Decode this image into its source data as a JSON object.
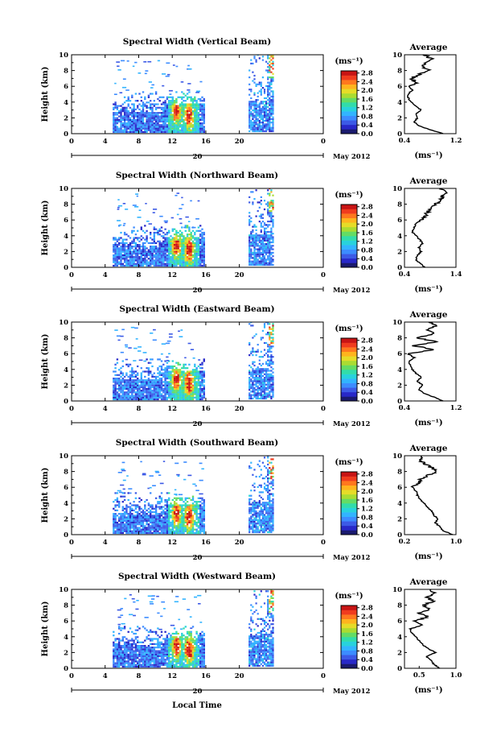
{
  "figure": {
    "xlabel": "Local Time",
    "colorbar_unit": "(ms⁻¹)",
    "avg_title": "Average",
    "avg_xlabel": "(ms⁻¹)",
    "ylabel": "Height (km)",
    "day_label": "20",
    "month_label": "May 2012",
    "x_ticks": [
      "0",
      "4",
      "8",
      "12",
      "16",
      "20",
      "0"
    ],
    "y_ticks": [
      "0",
      "2",
      "4",
      "6",
      "8",
      "10"
    ],
    "colorbar_ticks": [
      "0.0",
      "0.4",
      "0.8",
      "1.2",
      "1.6",
      "2.0",
      "2.4",
      "2.8"
    ]
  },
  "colors": {
    "colormap": [
      "#1a1a6e",
      "#2828c8",
      "#3c5ae6",
      "#3c8cff",
      "#32b4ff",
      "#28d2dc",
      "#32dcaa",
      "#64dc64",
      "#aadc32",
      "#e6dc28",
      "#ffb41e",
      "#ff781e",
      "#f03c1e",
      "#c81414"
    ]
  },
  "chart_data": [
    {
      "type": "heatmap",
      "title": "Spectral Width (Vertical Beam)",
      "xlabel": "Local Time",
      "ylabel": "Height (km)",
      "xlim": [
        0,
        24
      ],
      "ylim": [
        0,
        10
      ],
      "colorbar_range": [
        0.0,
        2.8
      ],
      "avg_profile": {
        "xlim": [
          0.4,
          1.2
        ],
        "x_ticks": [
          "0.4",
          "1.2"
        ],
        "height": [
          0,
          0.5,
          1,
          1.5,
          2,
          2.5,
          3,
          3.5,
          4,
          4.5,
          5,
          5.5,
          6,
          6.5,
          7,
          7.5,
          8,
          8.5,
          9,
          9.5,
          10
        ],
        "width": [
          1.0,
          0.8,
          0.62,
          0.55,
          0.6,
          0.57,
          0.66,
          0.58,
          0.5,
          0.46,
          0.45,
          0.52,
          0.48,
          0.6,
          0.5,
          0.62,
          0.78,
          0.68,
          0.72,
          0.82,
          0.7
        ]
      }
    },
    {
      "type": "heatmap",
      "title": "Spectral Width (Northward Beam)",
      "xlabel": "Local Time",
      "ylabel": "Height (km)",
      "xlim": [
        0,
        24
      ],
      "ylim": [
        0,
        10
      ],
      "colorbar_range": [
        0.0,
        2.8
      ],
      "avg_profile": {
        "xlim": [
          0.4,
          1.4
        ],
        "x_ticks": [
          "0.4",
          "1.4"
        ],
        "height": [
          0,
          0.5,
          1,
          1.5,
          2,
          2.5,
          3,
          3.5,
          4,
          4.5,
          5,
          5.5,
          6,
          6.5,
          7,
          7.5,
          8,
          8.5,
          9,
          9.5,
          10
        ],
        "width": [
          0.8,
          0.7,
          0.62,
          0.65,
          0.72,
          0.68,
          0.75,
          0.7,
          0.62,
          0.55,
          0.58,
          0.62,
          0.72,
          0.8,
          0.85,
          0.9,
          1.0,
          1.1,
          1.15,
          1.2,
          1.1
        ]
      }
    },
    {
      "type": "heatmap",
      "title": "Spectral Width (Eastward Beam)",
      "xlabel": "Local Time",
      "ylabel": "Height (km)",
      "xlim": [
        0,
        24
      ],
      "ylim": [
        0,
        10
      ],
      "colorbar_range": [
        0.0,
        2.8
      ],
      "avg_profile": {
        "xlim": [
          0.4,
          1.2
        ],
        "x_ticks": [
          "0.4",
          "1.2"
        ],
        "height": [
          0,
          0.5,
          1,
          1.5,
          2,
          2.5,
          3,
          3.5,
          4,
          4.5,
          5,
          5.5,
          6,
          6.5,
          7,
          7.5,
          8,
          8.5,
          9,
          9.5,
          10
        ],
        "width": [
          1.0,
          0.85,
          0.7,
          0.62,
          0.68,
          0.6,
          0.66,
          0.58,
          0.52,
          0.5,
          0.46,
          0.55,
          0.45,
          0.85,
          0.55,
          0.9,
          0.6,
          0.85,
          0.75,
          0.9,
          0.8
        ]
      }
    },
    {
      "type": "heatmap",
      "title": "Spectral Width (Southward Beam)",
      "xlabel": "Local Time",
      "ylabel": "Height (km)",
      "xlim": [
        0,
        24
      ],
      "ylim": [
        0,
        10
      ],
      "colorbar_range": [
        0.0,
        2.8
      ],
      "avg_profile": {
        "xlim": [
          0.2,
          1.0
        ],
        "x_ticks": [
          "0.2",
          "1.0"
        ],
        "height": [
          0,
          0.5,
          1,
          1.5,
          2,
          2.5,
          3,
          3.5,
          4,
          4.5,
          5,
          5.5,
          6,
          6.5,
          7,
          7.5,
          8,
          8.5,
          9,
          9.5,
          10
        ],
        "width": [
          0.95,
          0.8,
          0.75,
          0.68,
          0.72,
          0.65,
          0.62,
          0.56,
          0.5,
          0.44,
          0.4,
          0.38,
          0.32,
          0.42,
          0.45,
          0.55,
          0.7,
          0.62,
          0.5,
          0.45,
          0.48
        ]
      }
    },
    {
      "type": "heatmap",
      "title": "Spectral Width (Westward Beam)",
      "xlabel": "Local Time",
      "ylabel": "Height (km)",
      "xlim": [
        0,
        24
      ],
      "ylim": [
        0,
        10
      ],
      "colorbar_range": [
        0.0,
        2.8
      ],
      "avg_profile": {
        "xlim": [
          0.3,
          1.0
        ],
        "x_ticks": [
          "0.5",
          "1.0"
        ],
        "height": [
          0,
          0.5,
          1,
          1.5,
          2,
          2.5,
          3,
          3.5,
          4,
          4.5,
          5,
          5.5,
          6,
          6.5,
          7,
          7.5,
          8,
          8.5,
          9,
          9.5,
          10
        ],
        "width": [
          0.78,
          0.7,
          0.66,
          0.6,
          0.72,
          0.62,
          0.55,
          0.5,
          0.45,
          0.4,
          0.38,
          0.55,
          0.42,
          0.62,
          0.5,
          0.65,
          0.55,
          0.7,
          0.6,
          0.72,
          0.65
        ]
      }
    }
  ]
}
